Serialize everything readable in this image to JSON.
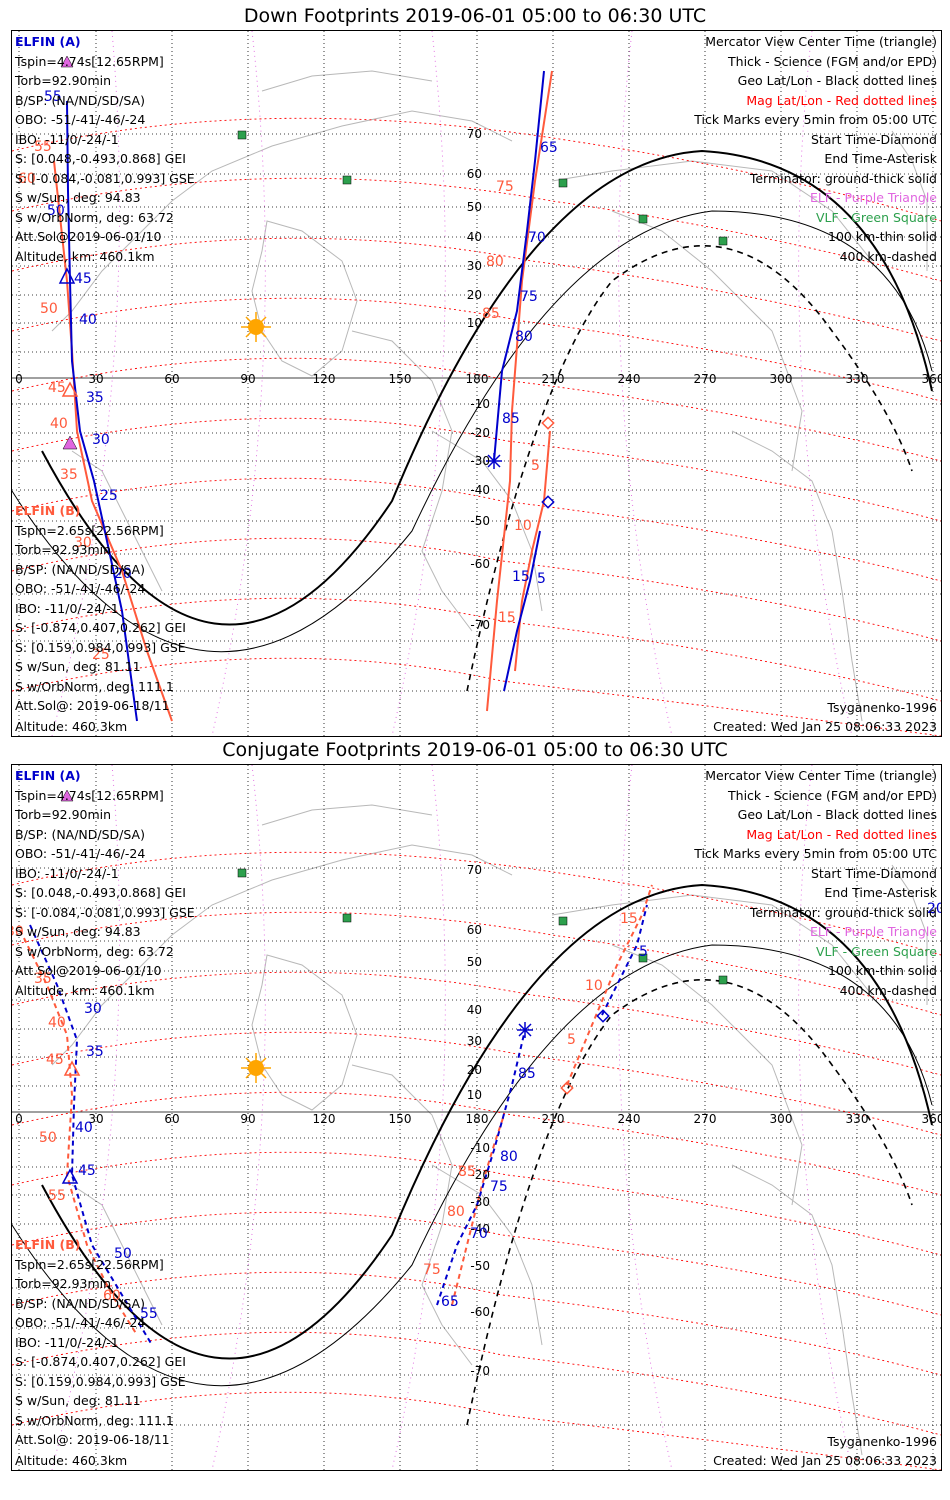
{
  "colors": {
    "elfin_a": "#0000cc",
    "elfin_b": "#ff5a3c",
    "mag_grid": "#ff0000",
    "geo_grid": "#000000",
    "sun": "#ffa500",
    "elf_marker": "#e066e0",
    "vlf_marker": "#2da04d",
    "coast": "#b8b8b8"
  },
  "lon_labels": [
    "0",
    "30",
    "60",
    "90",
    "120",
    "150",
    "180",
    "210",
    "240",
    "270",
    "300",
    "330",
    "360"
  ],
  "legend": [
    {
      "text": "Mercator View Center Time (triangle)",
      "style": ""
    },
    {
      "text": "Thick - Science (FGM and/or EPD)",
      "style": ""
    },
    {
      "text": "Geo Lat/Lon - Black dotted lines",
      "style": ""
    },
    {
      "text": "Mag Lat/Lon - Red dotted lines",
      "style": "red-text"
    },
    {
      "text": "Tick Marks every 5min from 05:00 UTC",
      "style": ""
    },
    {
      "text": "Start Time-Diamond",
      "style": ""
    },
    {
      "text": "End Time-Asterisk",
      "style": ""
    },
    {
      "text": "Terminator: ground-thick solid",
      "style": ""
    },
    {
      "text": "ELF - Purple Triangle",
      "style": "purple-text"
    },
    {
      "text": "VLF - Green Square",
      "style": "green-text"
    },
    {
      "text": "100 km-thin solid",
      "style": ""
    },
    {
      "text": "400 km-dashed",
      "style": ""
    }
  ],
  "elfin_a": {
    "name": "ELFIN (A)",
    "lines": [
      "Tspin=4.74s[12.65RPM]",
      "Torb=92.90min",
      "B/SP: (NA/ND/SD/SA)",
      "OBO: -51/-41/-46/-24",
      "IBO: -11/0/-24/-1",
      "S: [0.048,-0.493,0.868] GEI",
      "S: [-0.084,-0.081,0.993] GSE",
      "S w/Sun, deg: 94.83",
      "S w/OrbNorm, deg: 63.72",
      "Att.Sol@2019-06-01/10",
      "Altitude, km: 460.1km"
    ]
  },
  "elfin_b": {
    "name": "ELFIN (B)",
    "lines": [
      "Tspin=2.65s[22.56RPM]",
      "Torb=92.93min",
      "B/SP: (NA/ND/SD/SA)",
      "OBO: -51/-41/-46/-24",
      "IBO: -11/0/-24/-1",
      "S: [-0.874,0.407,0.262] GEI",
      "S: [0.159,0.984,0.993] GSE",
      "S w/Sun, deg: 81.11",
      "S w/OrbNorm, deg: 111.1",
      "Att.Sol@: 2019-06-18/11",
      "Altitude: 460.3km"
    ]
  },
  "model": "Tsyganenko-1996",
  "created": "Created: Wed Jan 25 08:06:33 2023",
  "panels": [
    {
      "title": "Down Footprints 2019-06-01 05:00 to 06:30 UTC",
      "lat_labels": [
        "70",
        "60",
        "50",
        "40",
        "30",
        "20",
        "10",
        "-10",
        "-20",
        "-30",
        "-40",
        "-50",
        "-60",
        "-70"
      ],
      "a_labels": [
        "55",
        "50",
        "45",
        "40",
        "35",
        "30",
        "25",
        "20",
        "65",
        "70",
        "75",
        "80",
        "85",
        "5",
        "15"
      ],
      "b_labels": [
        "60",
        "55",
        "50",
        "45",
        "40",
        "35",
        "30",
        "25",
        "75",
        "80",
        "85",
        "5",
        "10",
        "15"
      ]
    },
    {
      "title": "Conjugate Footprints 2019-06-01 05:00 to 06:30 UTC",
      "lat_labels": [
        "70",
        "60",
        "50",
        "40",
        "30",
        "20",
        "10",
        "-10",
        "-20",
        "-30",
        "-40",
        "-50",
        "-60",
        "-70"
      ],
      "a_labels": [
        "30",
        "35",
        "40",
        "45",
        "50",
        "55",
        "85",
        "80",
        "75",
        "70",
        "65",
        "5",
        "20"
      ],
      "b_labels": [
        "30",
        "35",
        "40",
        "45",
        "50",
        "55",
        "60",
        "85",
        "80",
        "75",
        "5",
        "10",
        "15"
      ]
    }
  ]
}
